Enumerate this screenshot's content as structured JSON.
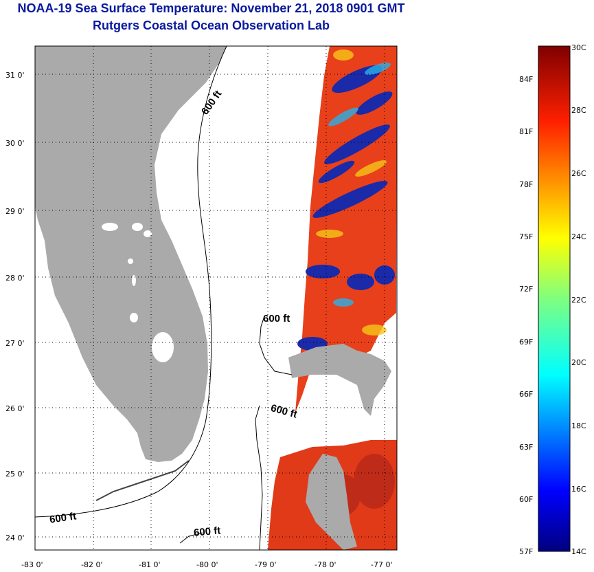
{
  "title": {
    "line1": "NOAA-19 Sea Surface Temperature:  November 21, 2018 0901 GMT",
    "line2": "Rutgers Coastal Ocean Observation Lab"
  },
  "map": {
    "lat_labels": [
      "31 0'",
      "30 0'",
      "29 0'",
      "28 0'",
      "27 0'",
      "26 0'",
      "25 0'",
      "24 0'"
    ],
    "lon_labels": [
      "-83 0'",
      "-82 0'",
      "-81 0'",
      "-80 0'",
      "-79 0'",
      "-78 0'",
      "-77 0'"
    ],
    "contour_labels": [
      "600 ft",
      "600 ft",
      "600 ft",
      "600 ft",
      "600 ft"
    ],
    "colors": {
      "land": "#aaaaaa",
      "background": "#ffffff",
      "sst_warm": "#e8401a",
      "sst_cold": "#1a2aa8"
    }
  },
  "colorbar": {
    "f_labels": [
      "84F",
      "81F",
      "78F",
      "75F",
      "72F",
      "69F",
      "66F",
      "63F",
      "60F",
      "57F"
    ],
    "c_labels": [
      "30C",
      "28C",
      "26C",
      "24C",
      "22C",
      "20C",
      "18C",
      "16C",
      "14C"
    ]
  }
}
